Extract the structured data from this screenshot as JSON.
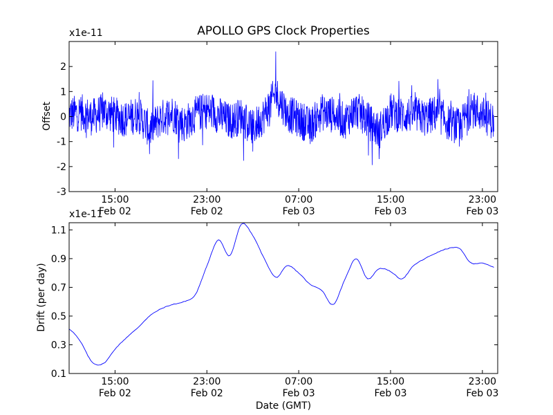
{
  "chart_data": [
    {
      "type": "line",
      "title": "APOLLO GPS Clock Properties",
      "xlabel": "",
      "ylabel": "Offset",
      "y_multiplier": "x1e-11",
      "ylim": [
        -3,
        3
      ],
      "yticks": [
        -3,
        -2,
        -1,
        0,
        1,
        2
      ],
      "ytick_labels": [
        "-3",
        "-2",
        "-1",
        "0",
        "1",
        "2"
      ],
      "xlim": [
        "2014-02-02T11:00",
        "2014-02-04T00:20"
      ],
      "xticks": [
        "2014-02-02T15:00",
        "2014-02-02T23:00",
        "2014-02-03T07:00",
        "2014-02-03T15:00",
        "2014-02-03T23:00"
      ],
      "xtick_labels": [
        [
          "15:00",
          "Feb 02"
        ],
        [
          "23:00",
          "Feb 02"
        ],
        [
          "07:00",
          "Feb 03"
        ],
        [
          "15:00",
          "Feb 03"
        ],
        [
          "23:00",
          "Feb 03"
        ]
      ],
      "grid": false,
      "color": "#0000ff",
      "series": [
        {
          "x": [
            "2014-02-02T11:00",
            "2014-02-02T12:00",
            "2014-02-02T13:00",
            "2014-02-02T14:00",
            "2014-02-02T15:00",
            "2014-02-02T16:00",
            "2014-02-02T17:00",
            "2014-02-02T18:00",
            "2014-02-02T19:00",
            "2014-02-02T20:00",
            "2014-02-02T21:00",
            "2014-02-02T22:00",
            "2014-02-02T23:00",
            "2014-02-03T00:00",
            "2014-02-03T01:00",
            "2014-02-03T02:00",
            "2014-02-03T03:00",
            "2014-02-03T04:00",
            "2014-02-03T05:00",
            "2014-02-03T06:00",
            "2014-02-03T07:00",
            "2014-02-03T08:00",
            "2014-02-03T09:00",
            "2014-02-03T10:00",
            "2014-02-03T11:00",
            "2014-02-03T12:00",
            "2014-02-03T13:00",
            "2014-02-03T14:00",
            "2014-02-03T15:00",
            "2014-02-03T16:00",
            "2014-02-03T17:00",
            "2014-02-03T18:00",
            "2014-02-03T19:00",
            "2014-02-03T20:00",
            "2014-02-03T21:00",
            "2014-02-03T22:00",
            "2014-02-03T23:00",
            "2014-02-04T00:00"
          ],
          "values": [
            0.2,
            0.5,
            -0.1,
            0.6,
            0.1,
            -0.3,
            0.3,
            -1.5,
            -0.2,
            0.4,
            -0.9,
            0.3,
            0.7,
            0.2,
            -0.6,
            0.1,
            -1.4,
            0.2,
            2.6,
            0.4,
            -0.3,
            -1.1,
            0.5,
            0.2,
            -0.5,
            0.8,
            -0.4,
            -1.7,
            0.6,
            0.1,
            0.3,
            -0.2,
            0.4,
            -0.6,
            -1.2,
            0.9,
            0.2,
            -0.6
          ]
        }
      ]
    },
    {
      "type": "line",
      "title": "",
      "xlabel": "Date (GMT)",
      "ylabel": "Drift (per day)",
      "y_multiplier": "x1e-11",
      "ylim": [
        0.1,
        1.15
      ],
      "yticks": [
        0.1,
        0.3,
        0.5,
        0.7,
        0.9,
        1.1
      ],
      "ytick_labels": [
        "0.1",
        "0.3",
        "0.5",
        "0.7",
        "0.9",
        "1.1"
      ],
      "xlim": [
        "2014-02-02T11:00",
        "2014-02-04T00:20"
      ],
      "xticks": [
        "2014-02-02T15:00",
        "2014-02-02T23:00",
        "2014-02-03T07:00",
        "2014-02-03T15:00",
        "2014-02-03T23:00"
      ],
      "xtick_labels": [
        [
          "15:00",
          "Feb 02"
        ],
        [
          "23:00",
          "Feb 02"
        ],
        [
          "07:00",
          "Feb 03"
        ],
        [
          "15:00",
          "Feb 03"
        ],
        [
          "23:00",
          "Feb 03"
        ]
      ],
      "grid": false,
      "color": "#0000ff",
      "series": [
        {
          "x": [
            "2014-02-02T11:00",
            "2014-02-02T12:00",
            "2014-02-02T13:00",
            "2014-02-02T14:00",
            "2014-02-02T15:00",
            "2014-02-02T16:00",
            "2014-02-02T17:00",
            "2014-02-02T18:00",
            "2014-02-02T19:00",
            "2014-02-02T20:00",
            "2014-02-02T21:00",
            "2014-02-02T22:00",
            "2014-02-02T23:00",
            "2014-02-03T00:00",
            "2014-02-03T01:00",
            "2014-02-03T02:00",
            "2014-02-03T03:00",
            "2014-02-03T04:00",
            "2014-02-03T05:00",
            "2014-02-03T06:00",
            "2014-02-03T07:00",
            "2014-02-03T08:00",
            "2014-02-03T09:00",
            "2014-02-03T10:00",
            "2014-02-03T11:00",
            "2014-02-03T12:00",
            "2014-02-03T13:00",
            "2014-02-03T14:00",
            "2014-02-03T15:00",
            "2014-02-03T16:00",
            "2014-02-03T17:00",
            "2014-02-03T18:00",
            "2014-02-03T19:00",
            "2014-02-03T20:00",
            "2014-02-03T21:00",
            "2014-02-03T22:00",
            "2014-02-03T23:00",
            "2014-02-04T00:00"
          ],
          "values": [
            0.41,
            0.32,
            0.18,
            0.17,
            0.27,
            0.35,
            0.42,
            0.5,
            0.55,
            0.58,
            0.6,
            0.65,
            0.85,
            1.03,
            0.92,
            1.14,
            1.06,
            0.9,
            0.77,
            0.85,
            0.8,
            0.72,
            0.68,
            0.58,
            0.75,
            0.9,
            0.76,
            0.83,
            0.81,
            0.76,
            0.85,
            0.9,
            0.94,
            0.97,
            0.97,
            0.87,
            0.87,
            0.84
          ]
        }
      ]
    }
  ]
}
